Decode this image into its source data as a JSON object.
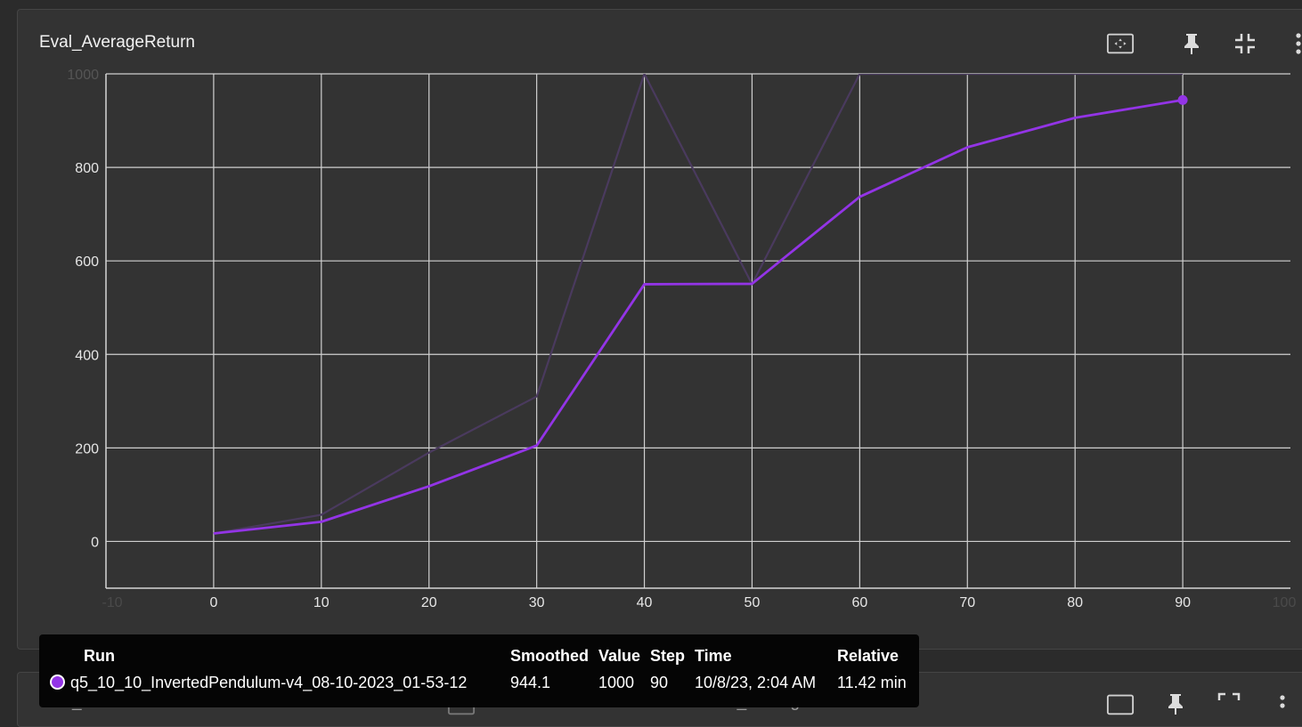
{
  "card": {
    "title": "Eval_AverageReturn",
    "toolbar": [
      "fit-domain-icon",
      "pin-icon",
      "collapse-icon",
      "more-vert-icon"
    ]
  },
  "lower_cards": {
    "left_title": "Eval_MaxReturn",
    "right_title": "Train_AverageReturn"
  },
  "colors": {
    "smoothed": "#9334e6",
    "raw": "#4a3a5e",
    "grid": "#d0d0d0",
    "axis": "#d6d6d6"
  },
  "chart_data": {
    "type": "line",
    "xlabel": "",
    "ylabel": "",
    "xlim": [
      -10,
      100
    ],
    "ylim": [
      -100,
      1000
    ],
    "x_ticks": [
      -10,
      0,
      10,
      20,
      30,
      40,
      50,
      60,
      70,
      80,
      90,
      100
    ],
    "y_ticks": [
      0,
      200,
      400,
      600,
      800,
      1000
    ],
    "grid": true,
    "series": [
      {
        "name": "q5_10_10_InvertedPendulum-v4_08-10-2023_01-53-12",
        "role": "raw",
        "x": [
          0,
          10,
          20,
          30,
          40,
          50,
          60,
          70,
          80,
          90
        ],
        "y": [
          17,
          57,
          190,
          310,
          1000,
          550,
          1000,
          1000,
          1000,
          1000
        ]
      },
      {
        "name": "q5_10_10_InvertedPendulum-v4_08-10-2023_01-53-12",
        "role": "smoothed",
        "x": [
          0,
          10,
          20,
          30,
          40,
          50,
          60,
          70,
          80,
          90
        ],
        "y": [
          17,
          42,
          118,
          205,
          550,
          551,
          737,
          843,
          906,
          944.1
        ]
      }
    ],
    "highlight": {
      "x": 90,
      "y": 944.1
    }
  },
  "tooltip": {
    "headers": {
      "run": "Run",
      "smoothed": "Smoothed",
      "value": "Value",
      "step": "Step",
      "time": "Time",
      "relative": "Relative"
    },
    "row": {
      "run": "q5_10_10_InvertedPendulum-v4_08-10-2023_01-53-12",
      "smoothed": "944.1",
      "value": "1000",
      "step": "90",
      "time": "10/8/23, 2:04 AM",
      "relative": "11.42 min"
    }
  }
}
